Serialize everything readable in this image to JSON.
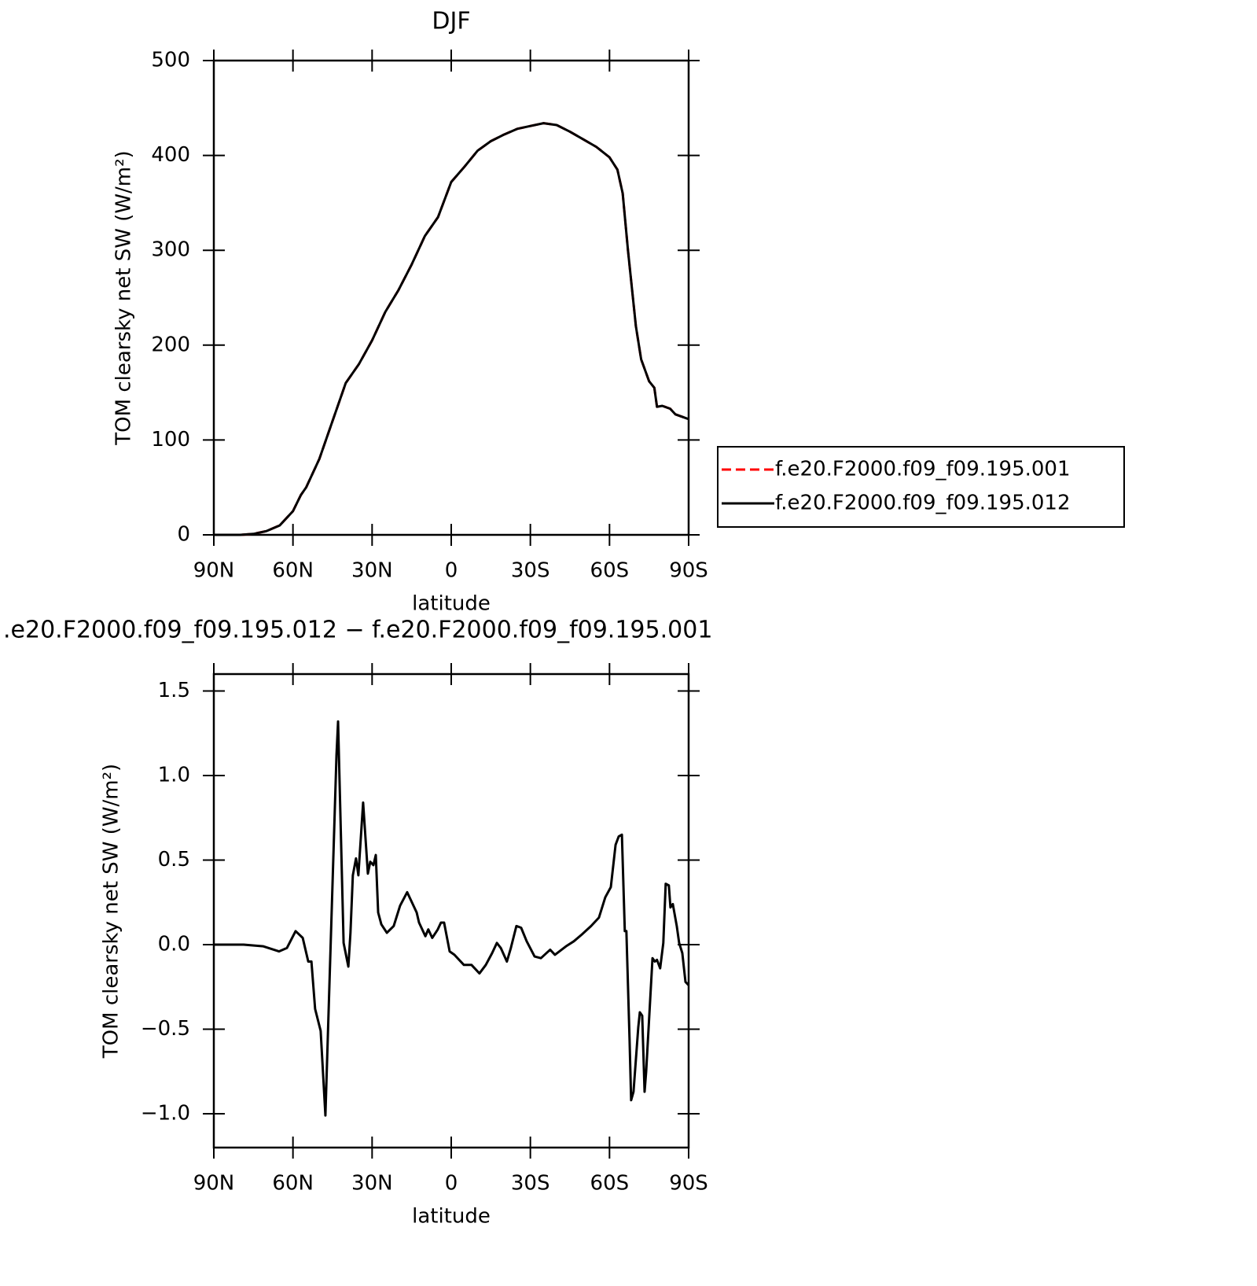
{
  "chart_data": [
    {
      "type": "line",
      "title": "DJF",
      "xlabel": "latitude",
      "ylabel": "TOM clearsky net SW (W/m²)",
      "xlim": [
        90,
        -90
      ],
      "xticks": [
        {
          "value": 90,
          "label": "90N"
        },
        {
          "value": 60,
          "label": "60N"
        },
        {
          "value": 30,
          "label": "30N"
        },
        0,
        {
          "value": -30,
          "label": "30S"
        },
        {
          "value": -60,
          "label": "60S"
        },
        {
          "value": -90,
          "label": "90S"
        }
      ],
      "ylim": [
        0,
        500
      ],
      "yticks": [
        0,
        100,
        200,
        300,
        400,
        500
      ],
      "legend": "right",
      "x": [
        90,
        80,
        75,
        70,
        65,
        60,
        57,
        55,
        50,
        45,
        40,
        35,
        30,
        25,
        20,
        15,
        10,
        5,
        0,
        -5,
        -10,
        -15,
        -20,
        -25,
        -30,
        -35,
        -40,
        -45,
        -50,
        -55,
        -60,
        -63,
        -65,
        -67,
        -70,
        -72,
        -75,
        -77,
        -78,
        -80,
        -83,
        -85,
        -88,
        -90
      ],
      "series": [
        {
          "name": "f.e20.F2000.f09_f09.195.001",
          "color": "#ff0000",
          "linestyle": "dashed",
          "values": [
            0,
            0,
            1,
            4,
            10,
            25,
            42,
            50,
            80,
            120,
            160,
            180,
            205,
            235,
            258,
            285,
            315,
            335,
            372,
            388,
            405,
            415,
            422,
            428,
            431,
            434,
            432,
            425,
            417,
            409,
            398,
            385,
            360,
            300,
            220,
            185,
            162,
            155,
            135,
            136,
            133,
            127,
            124,
            122
          ]
        },
        {
          "name": "f.e20.F2000.f09_f09.195.012",
          "color": "#000000",
          "linestyle": "solid",
          "values": [
            0,
            0,
            1,
            4,
            10,
            25,
            42,
            50,
            80,
            120,
            160,
            180,
            205,
            235,
            258,
            285,
            315,
            335,
            372,
            388,
            405,
            415,
            422,
            428,
            431,
            434,
            432,
            425,
            417,
            409,
            398,
            385,
            360,
            300,
            220,
            185,
            162,
            155,
            135,
            136,
            133,
            127,
            124,
            122
          ]
        }
      ]
    },
    {
      "type": "line",
      "title": ".e20.F2000.f09_f09.195.012 − f.e20.F2000.f09_f09.195.001",
      "xlabel": "latitude",
      "ylabel": "TOM clearsky net SW (W/m²)",
      "xlim": [
        90,
        -90
      ],
      "xticks": [
        {
          "value": 90,
          "label": "90N"
        },
        {
          "value": 60,
          "label": "60N"
        },
        {
          "value": 30,
          "label": "30N"
        },
        0,
        {
          "value": -30,
          "label": "30S"
        },
        {
          "value": -60,
          "label": "60S"
        },
        {
          "value": -90,
          "label": "90S"
        }
      ],
      "ylim": [
        -1.2,
        1.6
      ],
      "yticks": [
        1.5,
        {
          "value": 1,
          "label": "1.0"
        },
        0.5,
        {
          "value": 0,
          "label": "0.0"
        },
        {
          "value": -0.5,
          "label": "−0.5"
        },
        {
          "value": -1,
          "label": "−1.0"
        }
      ],
      "color": "#000000",
      "x": [
        90,
        78.7,
        71.2,
        65.3,
        62.3,
        59,
        56.3,
        54.2,
        53,
        51.6,
        49.5,
        47.7,
        43.5,
        42.9,
        40.8,
        39,
        38.2,
        37.3,
        36.1,
        35.2,
        33.4,
        31.6,
        30.7,
        29.5,
        28.6,
        27.7,
        26.5,
        24.4,
        21.8,
        19.4,
        16.7,
        13.1,
        12.2,
        9.8,
        8.7,
        7.2,
        5.1,
        3.9,
        2.7,
        0.6,
        -1.2,
        -4.8,
        -7.7,
        -10.7,
        -13.1,
        -15.5,
        -17.3,
        -18.8,
        -21.1,
        -22.6,
        -24.7,
        -26.5,
        -28.6,
        -31.6,
        -34,
        -37.5,
        -39.3,
        -43.5,
        -46.5,
        -49.5,
        -53,
        -56,
        -58.4,
        -60.5,
        -62.3,
        -63.5,
        -64.7,
        -65.8,
        -66.4,
        -67.6,
        -68.2,
        -69.1,
        -70.9,
        -71.5,
        -72.4,
        -73.3,
        -73.9,
        -76.3,
        -77.2,
        -78,
        -79.2,
        -80.4,
        -81.3,
        -82.5,
        -83.1,
        -84,
        -85.5,
        -86.4,
        -87.6,
        -88.8,
        -90
      ],
      "values": [
        0,
        0,
        -0.01,
        -0.04,
        -0.02,
        0.08,
        0.04,
        -0.1,
        -0.1,
        -0.38,
        -0.51,
        -1.01,
        1.12,
        1.32,
        0.01,
        -0.13,
        0.07,
        0.41,
        0.51,
        0.41,
        0.84,
        0.42,
        0.49,
        0.47,
        0.53,
        0.19,
        0.12,
        0.07,
        0.11,
        0.23,
        0.31,
        0.19,
        0.13,
        0.05,
        0.09,
        0.04,
        0.09,
        0.13,
        0.13,
        -0.04,
        -0.06,
        -0.12,
        -0.12,
        -0.17,
        -0.12,
        -0.05,
        0.01,
        -0.02,
        -0.1,
        -0.02,
        0.11,
        0.1,
        0.02,
        -0.07,
        -0.08,
        -0.03,
        -0.06,
        -0.01,
        0.02,
        0.06,
        0.11,
        0.16,
        0.28,
        0.34,
        0.59,
        0.64,
        0.65,
        0.08,
        0.08,
        -0.56,
        -0.92,
        -0.87,
        -0.49,
        -0.4,
        -0.42,
        -0.87,
        -0.75,
        -0.08,
        -0.1,
        -0.09,
        -0.14,
        0.01,
        0.36,
        0.35,
        0.22,
        0.24,
        0.11,
        0.01,
        -0.05,
        -0.22,
        -0.24
      ]
    }
  ]
}
